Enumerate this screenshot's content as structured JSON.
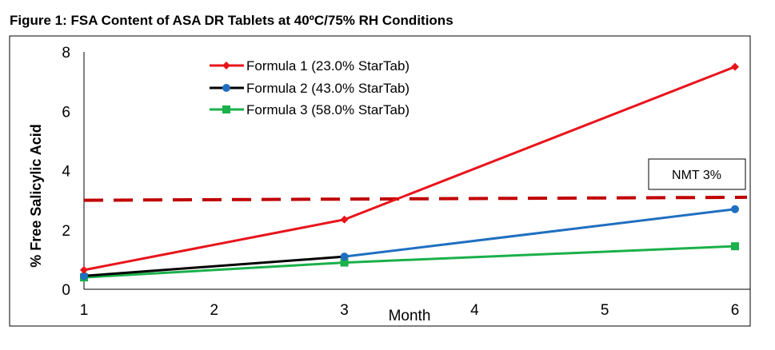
{
  "figure_title": "Figure 1: FSA Content of ASA DR Tablets at 40ºC/75% RH Conditions",
  "chart_data": {
    "type": "line",
    "title": "Figure 1: FSA Content of ASA DR Tablets at 40ºC/75% RH Conditions",
    "xlabel": "Month",
    "ylabel": "% Free Salicylic Acid",
    "xlim": [
      1,
      6
    ],
    "ylim": [
      0,
      8
    ],
    "xticks": [
      1,
      2,
      3,
      4,
      5,
      6
    ],
    "yticks": [
      0,
      2,
      4,
      6,
      8
    ],
    "grid": false,
    "legend_position": "top-center",
    "series": [
      {
        "name": "Formula 1 (23.0% StarTab)",
        "color": "#e8141b",
        "marker": "diamond",
        "x": [
          1,
          3,
          6
        ],
        "y": [
          0.65,
          2.35,
          7.5
        ]
      },
      {
        "name": "Formula 2 (43.0% StarTab)",
        "color": "#1f6fc1",
        "marker": "circle",
        "x": [
          1,
          3,
          6
        ],
        "y": [
          0.45,
          1.1,
          2.7
        ]
      },
      {
        "name": "Formula  3 (58.0% StarTab)",
        "color": "#1ab04a",
        "marker": "square",
        "x": [
          1,
          3,
          6
        ],
        "y": [
          0.4,
          0.9,
          1.45
        ]
      }
    ],
    "reference_line": {
      "label": "NMT 3%",
      "color": "#c00000",
      "style": "dashed",
      "y_start": 3.0,
      "y_end": 3.1
    }
  }
}
